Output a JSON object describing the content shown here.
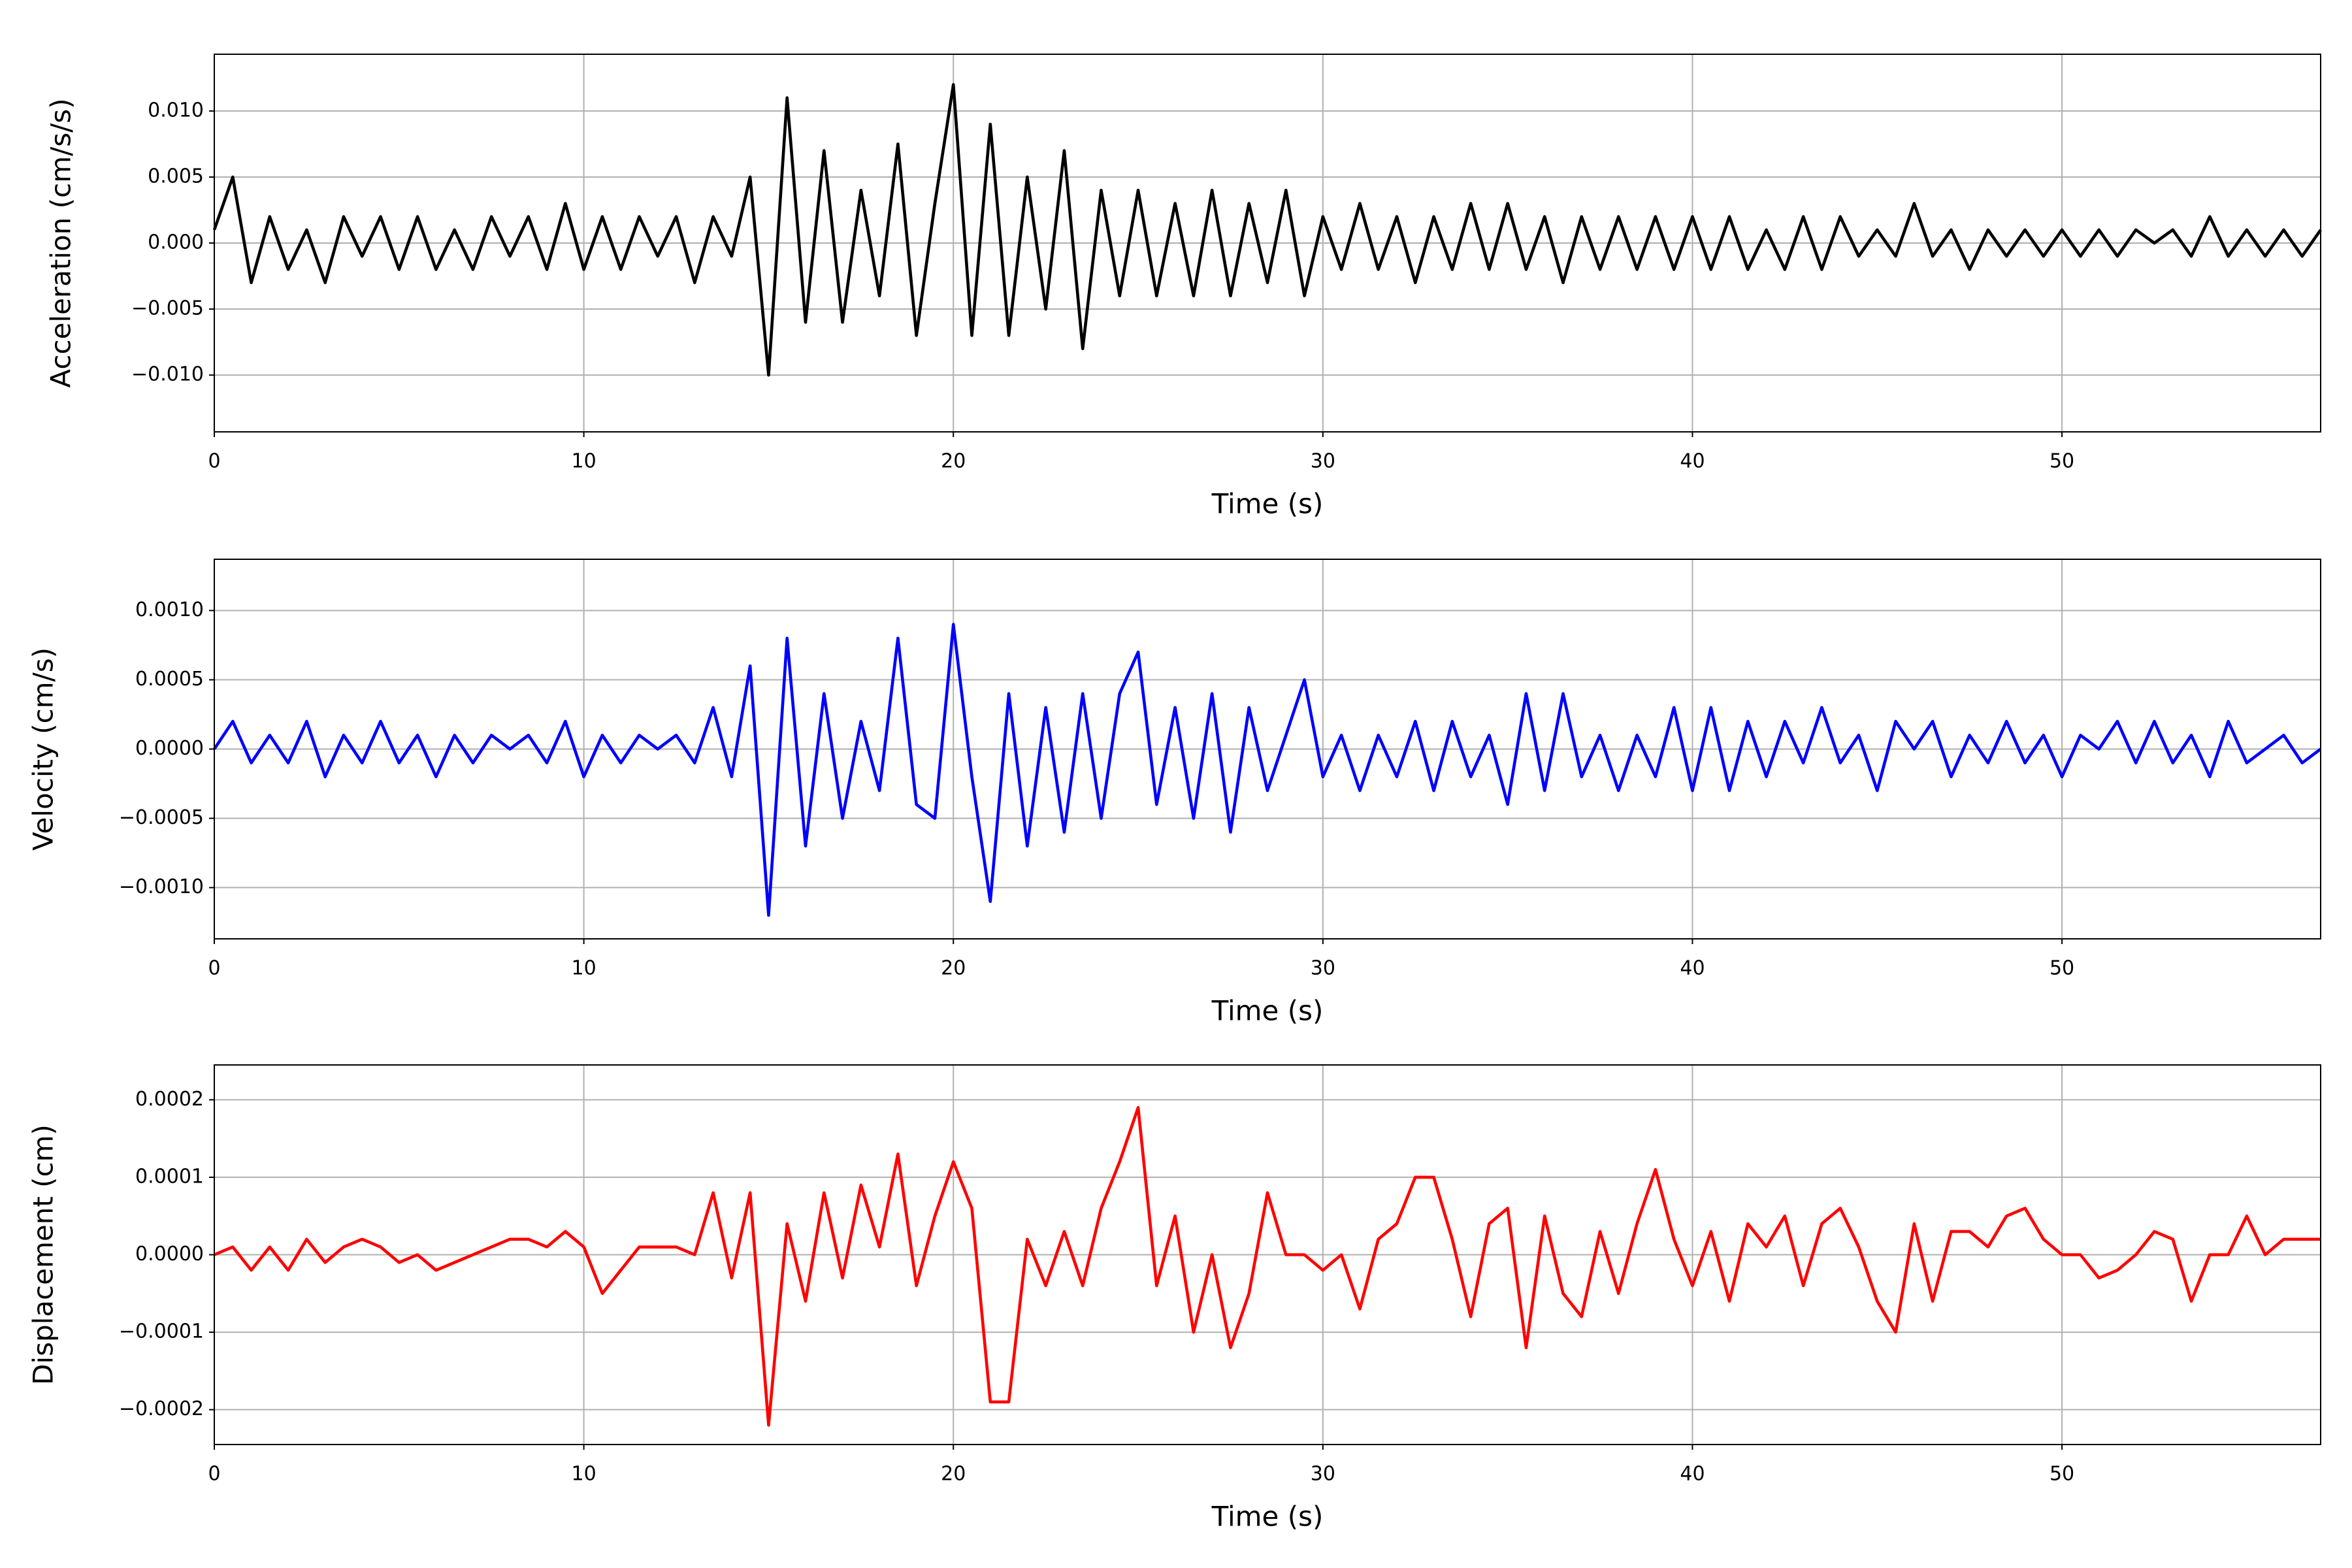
{
  "chart_data": [
    {
      "type": "line",
      "xlabel": "Time (s)",
      "ylabel": "Acceleration (cm/s/s)",
      "color": "#000000",
      "grid": true,
      "xlim": [
        0,
        57
      ],
      "ylim": [
        -0.0143,
        0.0143
      ],
      "xticks": [
        0,
        10,
        20,
        30,
        40,
        50
      ],
      "yticks": [
        {
          "value": -0.01,
          "label": "−0.010"
        },
        {
          "value": -0.005,
          "label": "−0.005"
        },
        {
          "value": 0,
          "label": "0.000"
        },
        {
          "value": 0.005,
          "label": "0.005"
        },
        {
          "value": 0.01,
          "label": "0.010"
        }
      ],
      "x": [
        0,
        0.5,
        1,
        1.5,
        2,
        2.5,
        3,
        3.5,
        4,
        4.5,
        5,
        5.5,
        6,
        6.5,
        7,
        7.5,
        8,
        8.5,
        9,
        9.5,
        10,
        10.5,
        11,
        11.5,
        12,
        12.5,
        13,
        13.5,
        14,
        14.5,
        15,
        15.5,
        16,
        16.5,
        17,
        17.5,
        18,
        18.5,
        19,
        19.5,
        20,
        20.5,
        21,
        21.5,
        22,
        22.5,
        23,
        23.5,
        24,
        24.5,
        25,
        25.5,
        26,
        26.5,
        27,
        27.5,
        28,
        28.5,
        29,
        29.5,
        30,
        30.5,
        31,
        31.5,
        32,
        32.5,
        33,
        33.5,
        34,
        34.5,
        35,
        35.5,
        36,
        36.5,
        37,
        37.5,
        38,
        38.5,
        39,
        39.5,
        40,
        40.5,
        41,
        41.5,
        42,
        42.5,
        43,
        43.5,
        44,
        44.5,
        45,
        45.5,
        46,
        46.5,
        47,
        47.5,
        48,
        48.5,
        49,
        49.5,
        50,
        50.5,
        51,
        51.5,
        52,
        52.5,
        53,
        53.5,
        54,
        54.5,
        55,
        55.5,
        56,
        56.5,
        57
      ],
      "values": [
        0.001,
        0.005,
        -0.003,
        0.002,
        -0.002,
        0.001,
        -0.003,
        0.002,
        -0.001,
        0.002,
        -0.002,
        0.002,
        -0.002,
        0.001,
        -0.002,
        0.002,
        -0.001,
        0.002,
        -0.002,
        0.003,
        -0.002,
        0.002,
        -0.002,
        0.002,
        -0.001,
        0.002,
        -0.003,
        0.002,
        -0.001,
        0.005,
        -0.01,
        0.011,
        -0.006,
        0.007,
        -0.006,
        0.004,
        -0.004,
        0.0075,
        -0.007,
        0.003,
        0.012,
        -0.007,
        0.009,
        -0.007,
        0.005,
        -0.005,
        0.007,
        -0.008,
        0.004,
        -0.004,
        0.004,
        -0.004,
        0.003,
        -0.004,
        0.004,
        -0.004,
        0.003,
        -0.003,
        0.004,
        -0.004,
        0.002,
        -0.002,
        0.003,
        -0.002,
        0.002,
        -0.003,
        0.002,
        -0.002,
        0.003,
        -0.002,
        0.003,
        -0.002,
        0.002,
        -0.003,
        0.002,
        -0.002,
        0.002,
        -0.002,
        0.002,
        -0.002,
        0.002,
        -0.002,
        0.002,
        -0.002,
        0.001,
        -0.002,
        0.002,
        -0.002,
        0.002,
        -0.001,
        0.001,
        -0.001,
        0.003,
        -0.001,
        0.001,
        -0.002,
        0.001,
        -0.001,
        0.001,
        -0.001,
        0.001,
        -0.001,
        0.001,
        -0.001,
        0.001,
        0.0,
        0.001,
        -0.001,
        0.002,
        -0.001,
        0.001,
        -0.001,
        0.001,
        -0.001,
        0.001
      ]
    },
    {
      "type": "line",
      "xlabel": "Time (s)",
      "ylabel": "Velocity (cm/s)",
      "color": "#0000ff",
      "grid": true,
      "xlim": [
        0,
        57
      ],
      "ylim": [
        -0.00137,
        0.00137
      ],
      "xticks": [
        0,
        10,
        20,
        30,
        40,
        50
      ],
      "yticks": [
        {
          "value": -0.001,
          "label": "−0.0010"
        },
        {
          "value": -0.0005,
          "label": "−0.0005"
        },
        {
          "value": 0,
          "label": "0.0000"
        },
        {
          "value": 0.0005,
          "label": "0.0005"
        },
        {
          "value": 0.001,
          "label": "0.0010"
        }
      ],
      "x": [
        0,
        0.5,
        1,
        1.5,
        2,
        2.5,
        3,
        3.5,
        4,
        4.5,
        5,
        5.5,
        6,
        6.5,
        7,
        7.5,
        8,
        8.5,
        9,
        9.5,
        10,
        10.5,
        11,
        11.5,
        12,
        12.5,
        13,
        13.5,
        14,
        14.5,
        15,
        15.5,
        16,
        16.5,
        17,
        17.5,
        18,
        18.5,
        19,
        19.5,
        20,
        20.5,
        21,
        21.5,
        22,
        22.5,
        23,
        23.5,
        24,
        24.5,
        25,
        25.5,
        26,
        26.5,
        27,
        27.5,
        28,
        28.5,
        29,
        29.5,
        30,
        30.5,
        31,
        31.5,
        32,
        32.5,
        33,
        33.5,
        34,
        34.5,
        35,
        35.5,
        36,
        36.5,
        37,
        37.5,
        38,
        38.5,
        39,
        39.5,
        40,
        40.5,
        41,
        41.5,
        42,
        42.5,
        43,
        43.5,
        44,
        44.5,
        45,
        45.5,
        46,
        46.5,
        47,
        47.5,
        48,
        48.5,
        49,
        49.5,
        50,
        50.5,
        51,
        51.5,
        52,
        52.5,
        53,
        53.5,
        54,
        54.5,
        55,
        55.5,
        56,
        56.5,
        57
      ],
      "values": [
        0.0,
        0.0002,
        -0.0001,
        0.0001,
        -0.0001,
        0.0002,
        -0.0002,
        0.0001,
        -0.0001,
        0.0002,
        -0.0001,
        0.0001,
        -0.0002,
        0.0001,
        -0.0001,
        0.0001,
        0.0,
        0.0001,
        -0.0001,
        0.0002,
        -0.0002,
        0.0001,
        -0.0001,
        0.0001,
        0.0,
        0.0001,
        -0.0001,
        0.0003,
        -0.0002,
        0.0006,
        -0.0012,
        0.0008,
        -0.0007,
        0.0004,
        -0.0005,
        0.0002,
        -0.0003,
        0.0008,
        -0.0004,
        -0.0005,
        0.0009,
        -0.0002,
        -0.0011,
        0.0004,
        -0.0007,
        0.0003,
        -0.0006,
        0.0004,
        -0.0005,
        0.0004,
        0.0007,
        -0.0004,
        0.0003,
        -0.0005,
        0.0004,
        -0.0006,
        0.0003,
        -0.0003,
        0.0001,
        0.0005,
        -0.0002,
        0.0001,
        -0.0003,
        0.0001,
        -0.0002,
        0.0002,
        -0.0003,
        0.0002,
        -0.0002,
        0.0001,
        -0.0004,
        0.0004,
        -0.0003,
        0.0004,
        -0.0002,
        0.0001,
        -0.0003,
        0.0001,
        -0.0002,
        0.0003,
        -0.0003,
        0.0003,
        -0.0003,
        0.0002,
        -0.0002,
        0.0002,
        -0.0001,
        0.0003,
        -0.0001,
        0.0001,
        -0.0003,
        0.0002,
        0.0,
        0.0002,
        -0.0002,
        0.0001,
        -0.0001,
        0.0002,
        -0.0001,
        0.0001,
        -0.0002,
        0.0001,
        0.0,
        0.0002,
        -0.0001,
        0.0002,
        -0.0001,
        0.0001,
        -0.0002,
        0.0002,
        -0.0001,
        0.0,
        0.0001,
        -0.0001,
        0.0
      ]
    },
    {
      "type": "line",
      "xlabel": "Time (s)",
      "ylabel": "Displacement (cm)",
      "color": "#ff0000",
      "grid": true,
      "xlim": [
        0,
        57
      ],
      "ylim": [
        -0.000245,
        0.000245
      ],
      "xticks": [
        0,
        10,
        20,
        30,
        40,
        50
      ],
      "yticks": [
        {
          "value": -0.0002,
          "label": "−0.0002"
        },
        {
          "value": -0.0001,
          "label": "−0.0001"
        },
        {
          "value": 0,
          "label": "0.0000"
        },
        {
          "value": 0.0001,
          "label": "0.0001"
        },
        {
          "value": 0.0002,
          "label": "0.0002"
        }
      ],
      "x": [
        0,
        0.5,
        1,
        1.5,
        2,
        2.5,
        3,
        3.5,
        4,
        4.5,
        5,
        5.5,
        6,
        6.5,
        7,
        7.5,
        8,
        8.5,
        9,
        9.5,
        10,
        10.5,
        11,
        11.5,
        12,
        12.5,
        13,
        13.5,
        14,
        14.5,
        15,
        15.5,
        16,
        16.5,
        17,
        17.5,
        18,
        18.5,
        19,
        19.5,
        20,
        20.5,
        21,
        21.5,
        22,
        22.5,
        23,
        23.5,
        24,
        24.5,
        25,
        25.5,
        26,
        26.5,
        27,
        27.5,
        28,
        28.5,
        29,
        29.5,
        30,
        30.5,
        31,
        31.5,
        32,
        32.5,
        33,
        33.5,
        34,
        34.5,
        35,
        35.5,
        36,
        36.5,
        37,
        37.5,
        38,
        38.5,
        39,
        39.5,
        40,
        40.5,
        41,
        41.5,
        42,
        42.5,
        43,
        43.5,
        44,
        44.5,
        45,
        45.5,
        46,
        46.5,
        47,
        47.5,
        48,
        48.5,
        49,
        49.5,
        50,
        50.5,
        51,
        51.5,
        52,
        52.5,
        53,
        53.5,
        54,
        54.5,
        55,
        55.5,
        56,
        56.5,
        57
      ],
      "values": [
        0.0,
        1e-05,
        -2e-05,
        1e-05,
        -2e-05,
        2e-05,
        -1e-05,
        1e-05,
        2e-05,
        1e-05,
        -1e-05,
        0.0,
        -2e-05,
        -1e-05,
        0.0,
        1e-05,
        2e-05,
        2e-05,
        1e-05,
        3e-05,
        1e-05,
        -5e-05,
        -2e-05,
        1e-05,
        1e-05,
        1e-05,
        0.0,
        8e-05,
        -3e-05,
        8e-05,
        -0.00022,
        4e-05,
        -6e-05,
        8e-05,
        -3e-05,
        9e-05,
        1e-05,
        0.00013,
        -4e-05,
        5e-05,
        0.00012,
        6e-05,
        -0.00019,
        -0.00019,
        2e-05,
        -4e-05,
        3e-05,
        -4e-05,
        6e-05,
        0.00012,
        0.00019,
        -4e-05,
        5e-05,
        -0.0001,
        0.0,
        -0.00012,
        -5e-05,
        8e-05,
        0.0,
        0.0,
        -2e-05,
        0.0,
        -7e-05,
        2e-05,
        4e-05,
        0.0001,
        0.0001,
        2e-05,
        -8e-05,
        4e-05,
        6e-05,
        -0.00012,
        5e-05,
        -5e-05,
        -8e-05,
        3e-05,
        -5e-05,
        4e-05,
        0.00011,
        2e-05,
        -4e-05,
        3e-05,
        -6e-05,
        4e-05,
        1e-05,
        5e-05,
        -4e-05,
        4e-05,
        6e-05,
        1e-05,
        -6e-05,
        -0.0001,
        4e-05,
        -6e-05,
        3e-05,
        3e-05,
        1e-05,
        5e-05,
        6e-05,
        2e-05,
        0.0,
        0.0,
        -3e-05,
        -2e-05,
        0.0,
        3e-05,
        2e-05,
        -6e-05,
        0.0,
        0.0,
        5e-05,
        0.0,
        2e-05,
        2e-05,
        2e-05
      ]
    }
  ]
}
